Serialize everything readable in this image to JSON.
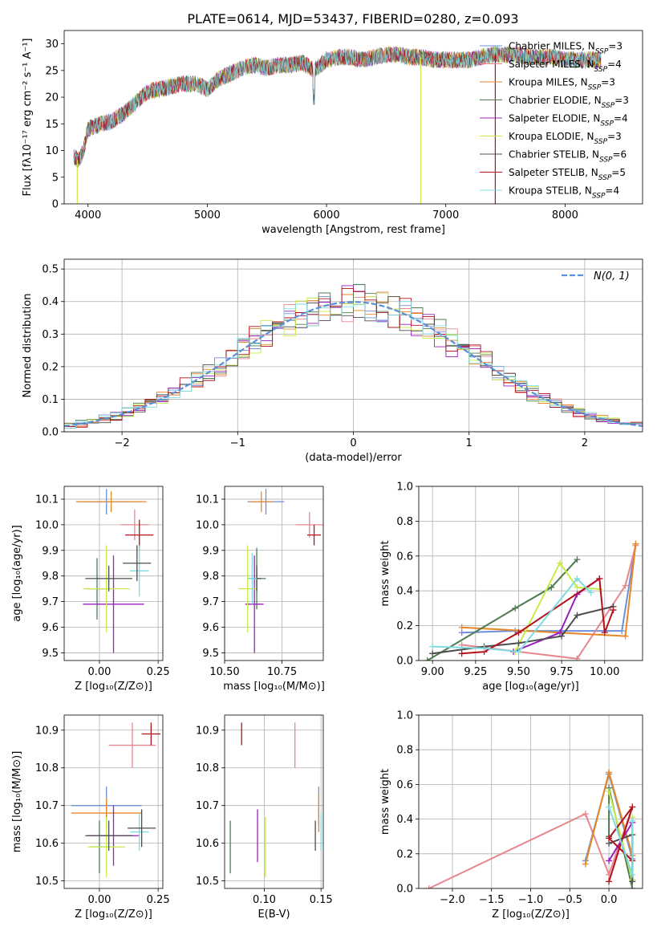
{
  "figure": {
    "title": "PLATE=0614, MJD=53437, FIBERID=0280, z=0.093"
  },
  "colors": {
    "chabrier_miles": "#6e8fd8",
    "salpeter_miles": "#e8868e",
    "kroupa_miles": "#e88624",
    "chabrier_elodie": "#4f7a50",
    "salpeter_elodie": "#9b1fbf",
    "kroupa_elodie": "#c7ec4a",
    "chabrier_stelib": "#4d4d4d",
    "salpeter_stelib": "#b3111a",
    "kroupa_stelib": "#7fdbe0",
    "normal_line": "#5b8fd9"
  },
  "chart_data": [
    {
      "id": "spectrum",
      "type": "line",
      "title": "PLATE=0614, MJD=53437, FIBERID=0280, z=0.093",
      "xlabel": "wavelength [Angstrom, rest frame]",
      "ylabel": "Flux [fλ10⁻¹⁷ erg cm⁻² s⁻¹ A⁻¹]",
      "xlim": [
        3800,
        8650
      ],
      "ylim": [
        0,
        32.5
      ],
      "xticks": [
        "4000",
        "5000",
        "6000",
        "7000",
        "8000"
      ],
      "yticks": [
        "0",
        "5",
        "10",
        "15",
        "20",
        "25",
        "30"
      ],
      "legend_position": "top-right",
      "legend": [
        {
          "label": "Chabrier MILES, N",
          "sub": "SSP",
          "eq": "=3",
          "color_key": "chabrier_miles"
        },
        {
          "label": "Salpeter MILES, N",
          "sub": "SSP",
          "eq": "=4",
          "color_key": "salpeter_miles"
        },
        {
          "label": "Kroupa MILES, N",
          "sub": "SSP",
          "eq": "=3",
          "color_key": "kroupa_miles"
        },
        {
          "label": "Chabrier ELODIE, N",
          "sub": "SSP",
          "eq": "=3",
          "color_key": "chabrier_elodie"
        },
        {
          "label": "Salpeter ELODIE, N",
          "sub": "SSP",
          "eq": "=4",
          "color_key": "salpeter_elodie"
        },
        {
          "label": "Kroupa ELODIE, N",
          "sub": "SSP",
          "eq": "=3",
          "color_key": "kroupa_elodie"
        },
        {
          "label": "Chabrier STELIB, N",
          "sub": "SSP",
          "eq": "=6",
          "color_key": "chabrier_stelib"
        },
        {
          "label": "Salpeter STELIB, N",
          "sub": "SSP",
          "eq": "=5",
          "color_key": "salpeter_stelib"
        },
        {
          "label": "Kroupa STELIB, N",
          "sub": "SSP",
          "eq": "=4",
          "color_key": "kroupa_stelib"
        }
      ],
      "continuum": {
        "x": [
          3880,
          3920,
          3960,
          4000,
          4100,
          4200,
          4300,
          4400,
          4500,
          4600,
          4700,
          4800,
          4900,
          5000,
          5100,
          5200,
          5300,
          5400,
          5500,
          5600,
          5700,
          5800,
          5900,
          6000,
          6100,
          6200,
          6300,
          6400,
          6500,
          6600,
          6700,
          6800,
          6900,
          7000,
          7100,
          7200,
          7300,
          7400,
          7500,
          7600,
          7700,
          7800,
          7900,
          8000,
          8100,
          8200,
          8300
        ],
        "y": [
          9,
          8,
          10,
          14,
          15,
          15.5,
          17,
          19,
          21,
          21.5,
          22,
          22.5,
          22.5,
          21.5,
          23.5,
          24.5,
          25.5,
          26,
          25.5,
          26,
          26,
          26.5,
          25,
          27,
          27.5,
          27.5,
          27,
          27.5,
          28,
          28,
          27.5,
          27.5,
          27,
          27,
          27,
          27,
          27.5,
          28,
          28,
          28,
          27.5,
          27.5,
          27.5,
          27,
          27,
          27,
          27
        ]
      },
      "drops": [
        {
          "x": 3910,
          "color_key": "kroupa_elodie"
        },
        {
          "x": 6790,
          "color_key": "kroupa_elodie"
        },
        {
          "x": 7415,
          "color_key": "salpeter_stelib"
        }
      ]
    },
    {
      "id": "residuals",
      "type": "step",
      "xlabel": "(data-model)/error",
      "ylabel": "Normed distribution",
      "xlim": [
        -2.5,
        2.5
      ],
      "ylim": [
        0,
        0.53
      ],
      "xticks": [
        "−2",
        "−1",
        "0",
        "1",
        "2"
      ],
      "yticks": [
        "0.0",
        "0.1",
        "0.2",
        "0.3",
        "0.4",
        "0.5"
      ],
      "legend_position": "top-right",
      "legend": [
        {
          "label": "N(0, 1)",
          "color_key": "normal_line",
          "style": "dashed"
        }
      ],
      "bin_width": 0.1
    },
    {
      "id": "age_vs_Z",
      "type": "errorbar",
      "xlabel": "Z [log₁₀(Z/Z⊙)]",
      "ylabel": "age  [log₁₀(age/yr)]",
      "xlim": [
        -0.15,
        0.27
      ],
      "ylim": [
        9.47,
        10.15
      ],
      "xticks": [
        "0.00",
        "0.25"
      ],
      "yticks": [
        "9.5",
        "9.6",
        "9.7",
        "9.8",
        "9.9",
        "10.0",
        "10.1"
      ],
      "points": [
        {
          "x": 0.03,
          "xerr": 0.1,
          "y": 10.09,
          "yerr": 0.05,
          "color_key": "chabrier_miles"
        },
        {
          "x": 0.15,
          "xerr": 0.06,
          "y": 10.0,
          "yerr": 0.06,
          "color_key": "salpeter_miles"
        },
        {
          "x": 0.05,
          "xerr": 0.15,
          "y": 10.09,
          "yerr": 0.04,
          "color_key": "kroupa_miles"
        },
        {
          "x": -0.01,
          "xerr": 0.04,
          "y": 9.75,
          "yerr": 0.12,
          "color_key": "chabrier_elodie"
        },
        {
          "x": 0.06,
          "xerr": 0.13,
          "y": 9.69,
          "yerr": 0.19,
          "color_key": "salpeter_elodie"
        },
        {
          "x": 0.03,
          "xerr": 0.1,
          "y": 9.75,
          "yerr": 0.17,
          "color_key": "kroupa_elodie"
        },
        {
          "x": 0.04,
          "xerr": 0.1,
          "y": 9.79,
          "yerr": 0.05,
          "color_key": "chabrier_stelib"
        },
        {
          "x": 0.17,
          "xerr": 0.06,
          "y": 9.96,
          "yerr": 0.06,
          "color_key": "salpeter_stelib"
        },
        {
          "x": 0.17,
          "xerr": 0.04,
          "y": 9.82,
          "yerr": 0.1,
          "color_key": "kroupa_stelib"
        },
        {
          "x": 0.16,
          "xerr": 0.06,
          "y": 9.85,
          "yerr": 0.07,
          "color_key": "chabrier_stelib"
        }
      ]
    },
    {
      "id": "age_vs_mass",
      "type": "errorbar",
      "xlabel": "mass [log₁₀(M/M⊙)]",
      "ylabel": "",
      "xlim": [
        10.5,
        10.93
      ],
      "ylim": [
        9.47,
        10.15
      ],
      "xticks": [
        "10.50",
        "10.75"
      ],
      "yticks": [
        "9.5",
        "9.6",
        "9.7",
        "9.8",
        "9.9",
        "10.0",
        "10.1"
      ],
      "points": [
        {
          "x": 10.68,
          "xerr": 0.08,
          "y": 10.09,
          "yerr": 0.05,
          "color_key": "chabrier_miles"
        },
        {
          "x": 10.87,
          "xerr": 0.06,
          "y": 10.0,
          "yerr": 0.05,
          "color_key": "salpeter_miles"
        },
        {
          "x": 10.66,
          "xerr": 0.05,
          "y": 10.09,
          "yerr": 0.04,
          "color_key": "kroupa_miles"
        },
        {
          "x": 10.64,
          "xerr": 0.04,
          "y": 9.79,
          "yerr": 0.12,
          "color_key": "chabrier_elodie"
        },
        {
          "x": 10.63,
          "xerr": 0.04,
          "y": 9.69,
          "yerr": 0.19,
          "color_key": "salpeter_elodie"
        },
        {
          "x": 10.6,
          "xerr": 0.04,
          "y": 9.75,
          "yerr": 0.17,
          "color_key": "kroupa_elodie"
        },
        {
          "x": 10.64,
          "xerr": 0.02,
          "y": 9.79,
          "yerr": 0.05,
          "color_key": "chabrier_stelib"
        },
        {
          "x": 10.89,
          "xerr": 0.03,
          "y": 9.96,
          "yerr": 0.04,
          "color_key": "salpeter_stelib"
        },
        {
          "x": 10.62,
          "xerr": 0.02,
          "y": 9.79,
          "yerr": 0.1,
          "color_key": "kroupa_stelib"
        }
      ]
    },
    {
      "id": "weights_vs_age",
      "type": "line",
      "xlabel": "age  [log₁₀(age/yr)]",
      "ylabel": "mass weight",
      "xlim": [
        8.92,
        10.22
      ],
      "ylim": [
        0,
        1
      ],
      "xticks": [
        "9.00",
        "9.25",
        "9.50",
        "9.75",
        "10.00"
      ],
      "yticks": [
        "0.0",
        "0.2",
        "0.4",
        "0.6",
        "0.8",
        "1.0"
      ],
      "series": [
        {
          "color_key": "chabrier_miles",
          "x": [
            9.17,
            9.48,
            10.1,
            10.18
          ],
          "y": [
            0.16,
            0.17,
            0.17,
            0.67
          ]
        },
        {
          "color_key": "salpeter_miles",
          "x": [
            9.17,
            9.84,
            10.12,
            10.18
          ],
          "y": [
            0.09,
            0.01,
            0.43,
            0.66
          ]
        },
        {
          "color_key": "kroupa_miles",
          "x": [
            9.17,
            10.12,
            10.18
          ],
          "y": [
            0.19,
            0.14,
            0.67
          ]
        },
        {
          "color_key": "chabrier_elodie",
          "x": [
            8.97,
            9.48,
            9.69,
            9.84
          ],
          "y": [
            0.0,
            0.3,
            0.42,
            0.58
          ]
        },
        {
          "color_key": "salpeter_elodie",
          "x": [
            9.47,
            9.74,
            9.84,
            9.97
          ],
          "y": [
            0.05,
            0.16,
            0.38,
            0.47
          ]
        },
        {
          "color_key": "kroupa_elodie",
          "x": [
            9.48,
            9.74,
            9.84,
            9.97
          ],
          "y": [
            0.05,
            0.56,
            0.42,
            0.41
          ]
        },
        {
          "color_key": "chabrier_stelib",
          "x": [
            9.0,
            9.3,
            9.5,
            9.75,
            9.84,
            10.05
          ],
          "y": [
            0.04,
            0.08,
            0.1,
            0.14,
            0.26,
            0.31
          ]
        },
        {
          "color_key": "salpeter_stelib",
          "x": [
            9.17,
            9.3,
            9.5,
            9.97,
            10.0,
            10.05
          ],
          "y": [
            0.04,
            0.05,
            0.16,
            0.47,
            0.16,
            0.29
          ]
        },
        {
          "color_key": "kroupa_stelib",
          "x": [
            9.0,
            9.3,
            9.5,
            9.84,
            9.92
          ],
          "y": [
            0.08,
            0.07,
            0.05,
            0.47,
            0.39
          ]
        }
      ]
    },
    {
      "id": "mass_vs_Z",
      "type": "errorbar",
      "xlabel": "Z [log₁₀(Z/Z⊙)]",
      "ylabel": "mass [log₁₀(M/M⊙)]",
      "xlim": [
        -0.15,
        0.27
      ],
      "ylim": [
        10.48,
        10.94
      ],
      "xticks": [
        "0.00",
        "0.25"
      ],
      "yticks": [
        "10.5",
        "10.6",
        "10.7",
        "10.8",
        "10.9"
      ],
      "points": [
        {
          "x": 0.03,
          "xerr": 0.15,
          "y": 10.7,
          "yerr": 0.05,
          "color_key": "chabrier_miles"
        },
        {
          "x": 0.14,
          "xerr": 0.1,
          "y": 10.86,
          "yerr": 0.06,
          "color_key": "salpeter_miles"
        },
        {
          "x": 0.03,
          "xerr": 0.15,
          "y": 10.68,
          "yerr": 0.04,
          "color_key": "kroupa_miles"
        },
        {
          "x": 0.0,
          "xerr": 0.04,
          "y": 10.59,
          "yerr": 0.07,
          "color_key": "chabrier_elodie"
        },
        {
          "x": 0.06,
          "xerr": 0.11,
          "y": 10.62,
          "yerr": 0.08,
          "color_key": "salpeter_elodie"
        },
        {
          "x": 0.03,
          "xerr": 0.08,
          "y": 10.59,
          "yerr": 0.08,
          "color_key": "kroupa_elodie"
        },
        {
          "x": 0.04,
          "xerr": 0.1,
          "y": 10.62,
          "yerr": 0.04,
          "color_key": "chabrier_stelib"
        },
        {
          "x": 0.22,
          "xerr": 0.04,
          "y": 10.89,
          "yerr": 0.03,
          "color_key": "salpeter_stelib"
        },
        {
          "x": 0.17,
          "xerr": 0.04,
          "y": 10.63,
          "yerr": 0.05,
          "color_key": "kroupa_stelib"
        },
        {
          "x": 0.18,
          "xerr": 0.06,
          "y": 10.64,
          "yerr": 0.05,
          "color_key": "chabrier_stelib"
        }
      ]
    },
    {
      "id": "mass_vs_ebv",
      "type": "errorbar",
      "xlabel": "E(B-V)",
      "ylabel": "",
      "xlim": [
        0.065,
        0.152
      ],
      "ylim": [
        10.48,
        10.94
      ],
      "xticks": [
        "0.05",
        "0.10",
        "0.15"
      ],
      "yticks": [
        "10.5",
        "10.6",
        "10.7",
        "10.8",
        "10.9"
      ],
      "points": [
        {
          "x": 0.148,
          "xerr": 0.0,
          "y": 10.7,
          "yerr": 0.05,
          "color_key": "chabrier_miles"
        },
        {
          "x": 0.127,
          "xerr": 0.0,
          "y": 10.86,
          "yerr": 0.06,
          "color_key": "salpeter_miles"
        },
        {
          "x": 0.148,
          "xerr": 0.0,
          "y": 10.68,
          "yerr": 0.05,
          "color_key": "kroupa_miles"
        },
        {
          "x": 0.07,
          "xerr": 0.0,
          "y": 10.59,
          "yerr": 0.07,
          "color_key": "chabrier_elodie"
        },
        {
          "x": 0.094,
          "xerr": 0.0,
          "y": 10.62,
          "yerr": 0.07,
          "color_key": "salpeter_elodie"
        },
        {
          "x": 0.101,
          "xerr": 0.0,
          "y": 10.59,
          "yerr": 0.08,
          "color_key": "kroupa_elodie"
        },
        {
          "x": 0.145,
          "xerr": 0.0,
          "y": 10.62,
          "yerr": 0.04,
          "color_key": "chabrier_stelib"
        },
        {
          "x": 0.08,
          "xerr": 0.0,
          "y": 10.89,
          "yerr": 0.03,
          "color_key": "salpeter_stelib"
        },
        {
          "x": 0.15,
          "xerr": 0.0,
          "y": 10.63,
          "yerr": 0.05,
          "color_key": "kroupa_stelib"
        }
      ]
    },
    {
      "id": "weights_vs_Z",
      "type": "line",
      "xlabel": "Z [log₁₀(Z/Z⊙)]",
      "ylabel": "mass weight",
      "xlim": [
        -2.43,
        0.43
      ],
      "ylim": [
        0,
        1
      ],
      "xticks": [
        "−2.0",
        "−1.5",
        "−1.0",
        "−0.5",
        "0.0"
      ],
      "yticks": [
        "0.0",
        "0.2",
        "0.4",
        "0.6",
        "0.8",
        "1.0"
      ],
      "series": [
        {
          "color_key": "salpeter_miles",
          "x": [
            -2.3,
            -0.3,
            0.0,
            0.3
          ],
          "y": [
            0.0,
            0.43,
            0.08,
            0.47
          ]
        },
        {
          "color_key": "chabrier_miles",
          "x": [
            -0.3,
            0.0,
            0.3
          ],
          "y": [
            0.16,
            0.66,
            0.17
          ]
        },
        {
          "color_key": "kroupa_miles",
          "x": [
            -0.3,
            0.0,
            0.3
          ],
          "y": [
            0.14,
            0.67,
            0.19
          ]
        },
        {
          "color_key": "chabrier_elodie",
          "x": [
            0.0,
            0.0,
            0.3
          ],
          "y": [
            0.3,
            0.58,
            0.0
          ]
        },
        {
          "color_key": "salpeter_elodie",
          "x": [
            0.0,
            0.3,
            0.3
          ],
          "y": [
            0.16,
            0.38,
            0.05
          ]
        },
        {
          "color_key": "kroupa_elodie",
          "x": [
            0.0,
            0.3,
            0.3
          ],
          "y": [
            0.56,
            0.05,
            0.41
          ]
        },
        {
          "color_key": "chabrier_stelib",
          "x": [
            0.0,
            0.3,
            0.3
          ],
          "y": [
            0.26,
            0.31,
            0.04
          ]
        },
        {
          "color_key": "salpeter_stelib",
          "x": [
            0.0,
            0.3,
            0.0,
            0.3
          ],
          "y": [
            0.04,
            0.47,
            0.29,
            0.16
          ]
        },
        {
          "color_key": "kroupa_stelib",
          "x": [
            0.0,
            0.3,
            0.3
          ],
          "y": [
            0.47,
            0.08,
            0.39
          ]
        }
      ]
    }
  ]
}
